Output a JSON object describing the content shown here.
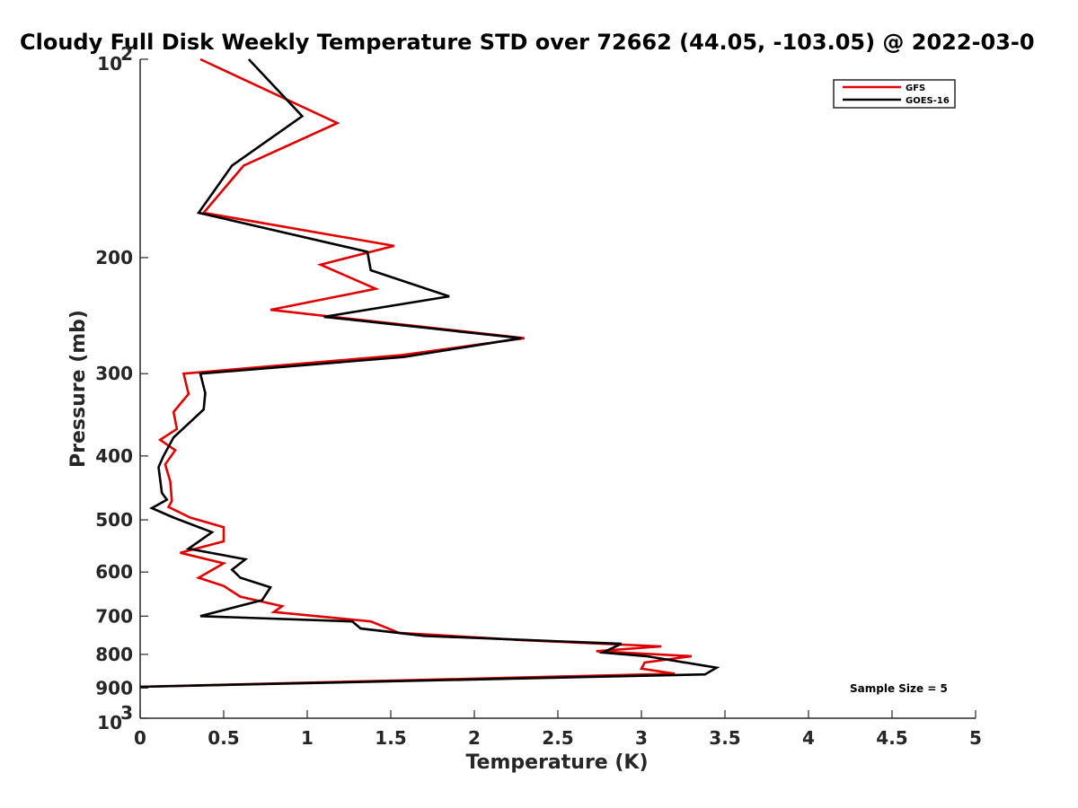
{
  "chart_data": {
    "type": "line",
    "title": "Cloudy Full Disk Weekly Temperature STD over 72662 (44.05, -103.05) @ 2022-03-0",
    "xlabel": "Temperature (K)",
    "ylabel": "Pressure (mb)",
    "xlim": [
      0,
      5
    ],
    "ylim": [
      1000,
      100
    ],
    "yscale": "log",
    "y_reversed": true,
    "grid": false,
    "legend_position": "top-right",
    "x_ticks": [
      "0",
      "0.5",
      "1",
      "1.5",
      "2",
      "2.5",
      "3",
      "3.5",
      "4",
      "4.5",
      "5"
    ],
    "x_tick_values": [
      0,
      0.5,
      1,
      1.5,
      2,
      2.5,
      3,
      3.5,
      4,
      4.5,
      5
    ],
    "y_ticks": [
      {
        "value": 200,
        "label": "200"
      },
      {
        "value": 300,
        "label": "300"
      },
      {
        "value": 400,
        "label": "400"
      },
      {
        "value": 500,
        "label": "500"
      },
      {
        "value": 600,
        "label": "600"
      },
      {
        "value": 700,
        "label": "700"
      },
      {
        "value": 800,
        "label": "800"
      },
      {
        "value": 900,
        "label": "900"
      }
    ],
    "y_tick_top": {
      "value": 100,
      "base": "10",
      "exp": "2"
    },
    "y_tick_bottom": {
      "value": 1000,
      "base": "10",
      "exp": "3"
    },
    "annotation": "Sample Size = 5",
    "series": [
      {
        "name": "GFS",
        "color": "#e00000",
        "points": [
          [
            0.36,
            100
          ],
          [
            1.18,
            125
          ],
          [
            0.62,
            145
          ],
          [
            0.38,
            171
          ],
          [
            1.52,
            192
          ],
          [
            1.08,
            205
          ],
          [
            1.41,
            223
          ],
          [
            0.78,
            240
          ],
          [
            2.3,
            265
          ],
          [
            1.57,
            281
          ],
          [
            0.26,
            300
          ],
          [
            0.29,
            322
          ],
          [
            0.2,
            343
          ],
          [
            0.22,
            364
          ],
          [
            0.12,
            378
          ],
          [
            0.21,
            392
          ],
          [
            0.15,
            412
          ],
          [
            0.18,
            437
          ],
          [
            0.19,
            468
          ],
          [
            0.17,
            478
          ],
          [
            0.3,
            496
          ],
          [
            0.5,
            513
          ],
          [
            0.5,
            539
          ],
          [
            0.24,
            561
          ],
          [
            0.5,
            582
          ],
          [
            0.35,
            612
          ],
          [
            0.5,
            630
          ],
          [
            0.6,
            654
          ],
          [
            0.85,
            676
          ],
          [
            0.8,
            690
          ],
          [
            1.38,
            713
          ],
          [
            1.55,
            742
          ],
          [
            2.28,
            761
          ],
          [
            3.12,
            778
          ],
          [
            2.73,
            791
          ],
          [
            3.3,
            805
          ],
          [
            3.02,
            823
          ],
          [
            3.0,
            841
          ],
          [
            3.2,
            856
          ],
          [
            0.0,
            896
          ]
        ]
      },
      {
        "name": "GOES-16",
        "color": "#000000",
        "points": [
          [
            0.65,
            100
          ],
          [
            0.97,
            122
          ],
          [
            0.55,
            145
          ],
          [
            0.35,
            171
          ],
          [
            1.36,
            196
          ],
          [
            1.38,
            209
          ],
          [
            1.85,
            229
          ],
          [
            1.1,
            246
          ],
          [
            2.28,
            265
          ],
          [
            1.58,
            283
          ],
          [
            0.36,
            300
          ],
          [
            0.39,
            321
          ],
          [
            0.38,
            340
          ],
          [
            0.2,
            375
          ],
          [
            0.14,
            400
          ],
          [
            0.11,
            416
          ],
          [
            0.13,
            455
          ],
          [
            0.16,
            466
          ],
          [
            0.07,
            480
          ],
          [
            0.2,
            496
          ],
          [
            0.43,
            522
          ],
          [
            0.29,
            553
          ],
          [
            0.63,
            574
          ],
          [
            0.55,
            595
          ],
          [
            0.6,
            612
          ],
          [
            0.78,
            633
          ],
          [
            0.73,
            662
          ],
          [
            0.36,
            700
          ],
          [
            1.27,
            713
          ],
          [
            1.32,
            731
          ],
          [
            1.7,
            750
          ],
          [
            2.88,
            771
          ],
          [
            2.77,
            795
          ],
          [
            3.03,
            805
          ],
          [
            3.45,
            838
          ],
          [
            3.38,
            858
          ],
          [
            0.0,
            896
          ]
        ]
      }
    ]
  }
}
